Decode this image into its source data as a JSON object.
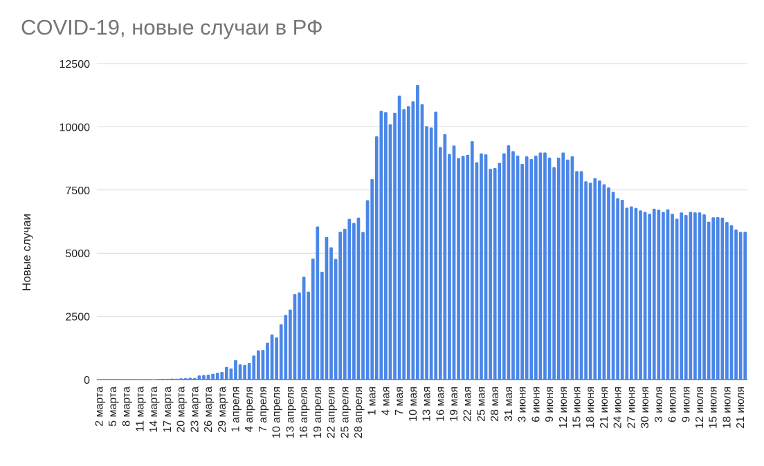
{
  "chart_data": {
    "type": "bar",
    "title": "COVID-19, новые случаи в РФ",
    "xlabel": "",
    "ylabel": "Новые случаи",
    "ylim": [
      0,
      12500
    ],
    "yticks": [
      "0",
      "2500",
      "5000",
      "7500",
      "10000",
      "12500"
    ],
    "grid": true,
    "legend": "none",
    "bar_color": "#4a86e8",
    "grid_color": "#d9d9d9",
    "start_date": "2 марта",
    "tick_labels": [
      "2 марта",
      "5 марта",
      "8 марта",
      "11 марта",
      "14 марта",
      "17 марта",
      "20 марта",
      "23 марта",
      "26 марта",
      "29 марта",
      "1 апреля",
      "4 апреля",
      "7 апреля",
      "10 апреля",
      "13 апреля",
      "16 апреля",
      "19 апреля",
      "22 апреля",
      "25 апреля",
      "28 апреля",
      "1 мая",
      "4 мая",
      "7 мая",
      "10 мая",
      "13 мая",
      "16 мая",
      "19 мая",
      "22 мая",
      "25 мая",
      "28 мая",
      "31 мая",
      "3 июня",
      "6 июня",
      "9 июня",
      "12 июня",
      "15 июня",
      "18 июня",
      "21 июня",
      "24 июня",
      "27 июня",
      "30 июня",
      "3 июля",
      "6 июля",
      "9 июля",
      "12 июля",
      "15 июля",
      "18 июля",
      "21 июля"
    ],
    "values": [
      3,
      0,
      0,
      0,
      0,
      0,
      3,
      3,
      2,
      6,
      7,
      3,
      14,
      24,
      30,
      27,
      37,
      35,
      52,
      54,
      71,
      57,
      163,
      182,
      196,
      228,
      270,
      302,
      501,
      440,
      771,
      601,
      582,
      658,
      954,
      1154,
      1175,
      1459,
      1786,
      1667,
      2186,
      2558,
      2774,
      3388,
      3448,
      4070,
      3482,
      4785,
      6060,
      4268,
      5642,
      5236,
      4774,
      5849,
      5966,
      6361,
      6198,
      6411,
      5841,
      7099,
      7933,
      9623,
      10633,
      10581,
      10102,
      10559,
      11231,
      10699,
      10817,
      11012,
      11656,
      10899,
      10028,
      9974,
      10598,
      9200,
      9709,
      8926,
      9263,
      8764,
      8849,
      8894,
      9434,
      8599,
      8946,
      8915,
      8338,
      8371,
      8572,
      8952,
      9268,
      9035,
      8863,
      8536,
      8831,
      8726,
      8855,
      8985,
      8987,
      8779,
      8404,
      8779,
      8987,
      8706,
      8835,
      8248,
      8246,
      7843,
      7790,
      7972,
      7876,
      7728,
      7600,
      7425,
      7176,
      7113,
      6800,
      6852,
      6791,
      6693,
      6632,
      6556,
      6760,
      6718,
      6632,
      6736,
      6562,
      6368,
      6611,
      6509,
      6635,
      6615,
      6611,
      6537,
      6248,
      6422,
      6428,
      6406,
      6234,
      6109,
      5940,
      5842,
      5848
    ]
  }
}
